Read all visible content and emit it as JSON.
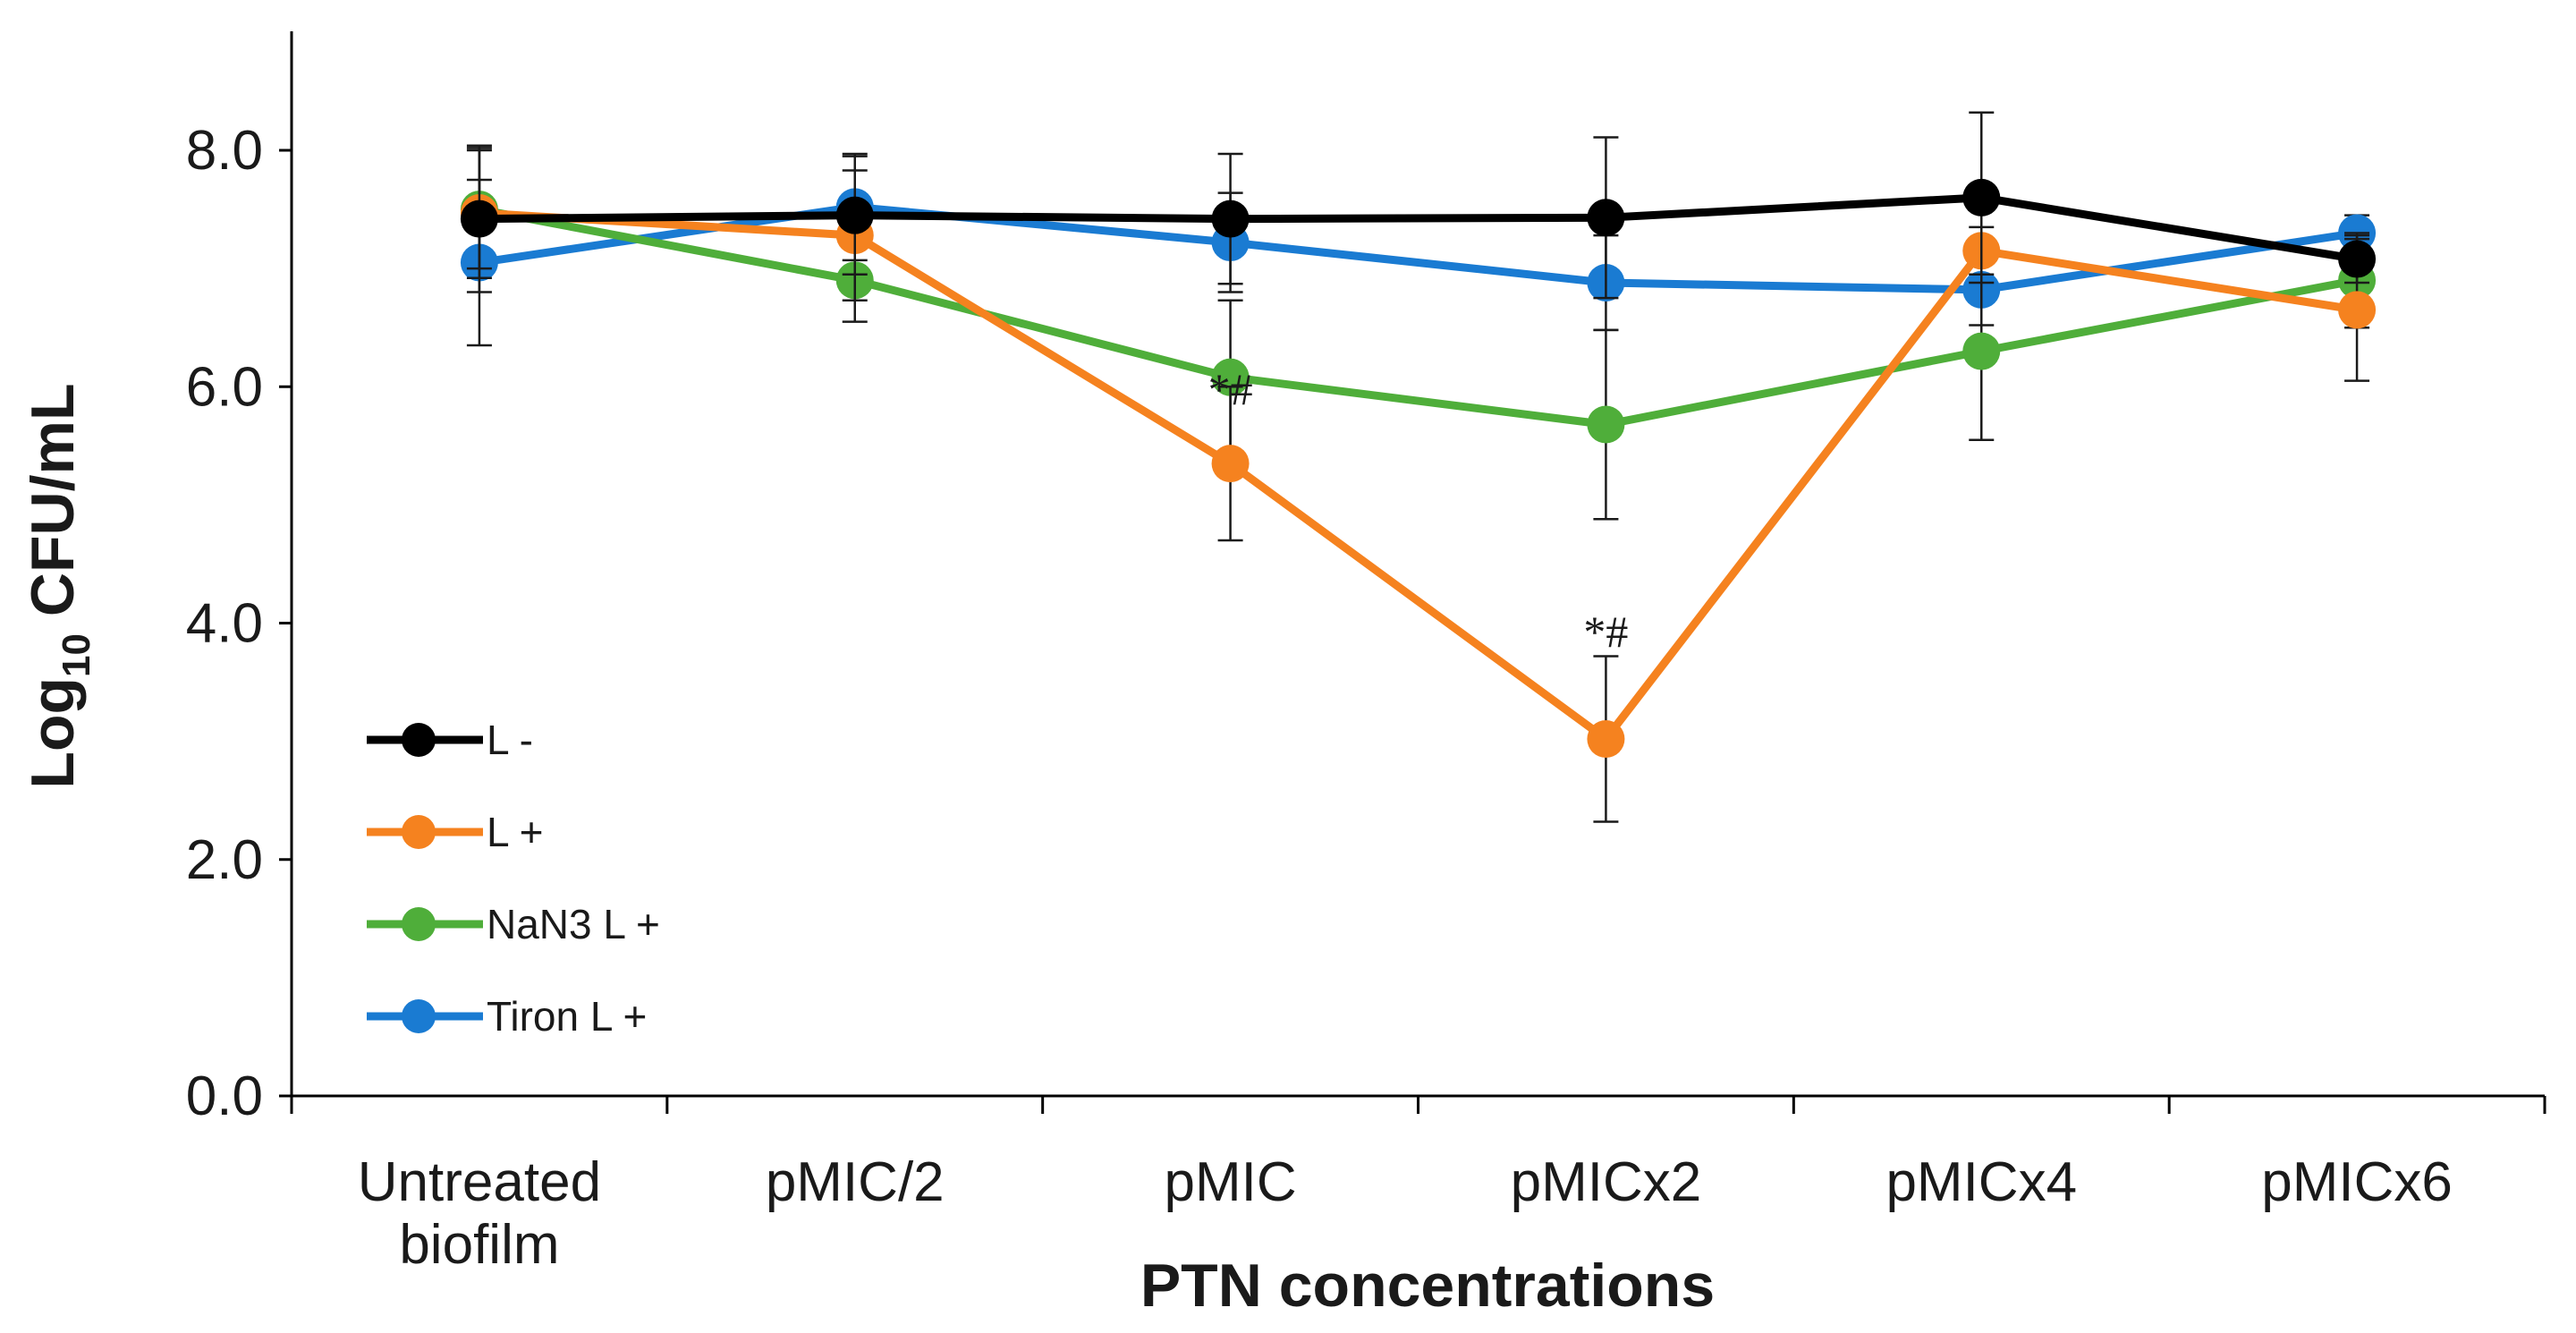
{
  "chart_data": {
    "type": "line",
    "title": "",
    "xlabel": "PTN concentrations",
    "ylabel_main": "Log",
    "ylabel_sub": "10",
    "ylabel_rest": " CFU/mL",
    "categories": [
      [
        "Untreated",
        "biofilm"
      ],
      [
        "pMIC/2"
      ],
      [
        "pMIC"
      ],
      [
        "pMICx2"
      ],
      [
        "pMICx4"
      ],
      [
        "pMICx6"
      ]
    ],
    "ylim": [
      0,
      8.9
    ],
    "yticks": [
      0,
      2,
      4,
      6,
      8
    ],
    "ytick_labels": [
      "0.0",
      "2.0",
      "4.0",
      "6.0",
      "8.0"
    ],
    "grid": false,
    "legend_position": "bottom-left",
    "series": [
      {
        "name": "L -",
        "color": "#000000",
        "values": [
          7.42,
          7.45,
          7.42,
          7.43,
          7.6,
          7.08
        ],
        "errors": [
          0.62,
          0.5,
          0.55,
          0.68,
          0.72,
          0.2
        ]
      },
      {
        "name": "L +",
        "color": "#f5821f",
        "values": [
          7.47,
          7.28,
          5.35,
          3.02,
          7.15,
          6.65
        ],
        "errors": [
          0.55,
          0.55,
          0.65,
          0.7,
          0.2,
          0.6
        ]
      },
      {
        "name": "NaN3 L +",
        "color": "#4fae3a",
        "values": [
          7.5,
          6.9,
          6.08,
          5.68,
          6.3,
          6.9
        ],
        "errors": [
          0.5,
          0.35,
          0.65,
          0.8,
          0.75,
          0.4
        ]
      },
      {
        "name": "Tiron L +",
        "color": "#1a7bd2",
        "values": [
          7.05,
          7.52,
          7.22,
          6.88,
          6.82,
          7.3
        ],
        "errors": [
          0.7,
          0.45,
          0.42,
          0.4,
          0.3,
          0.15
        ]
      }
    ],
    "annotations": [
      {
        "text": "*#",
        "category_index": 2,
        "y": 5.85
      },
      {
        "text": "*#",
        "category_index": 3,
        "y": 3.8
      }
    ]
  }
}
